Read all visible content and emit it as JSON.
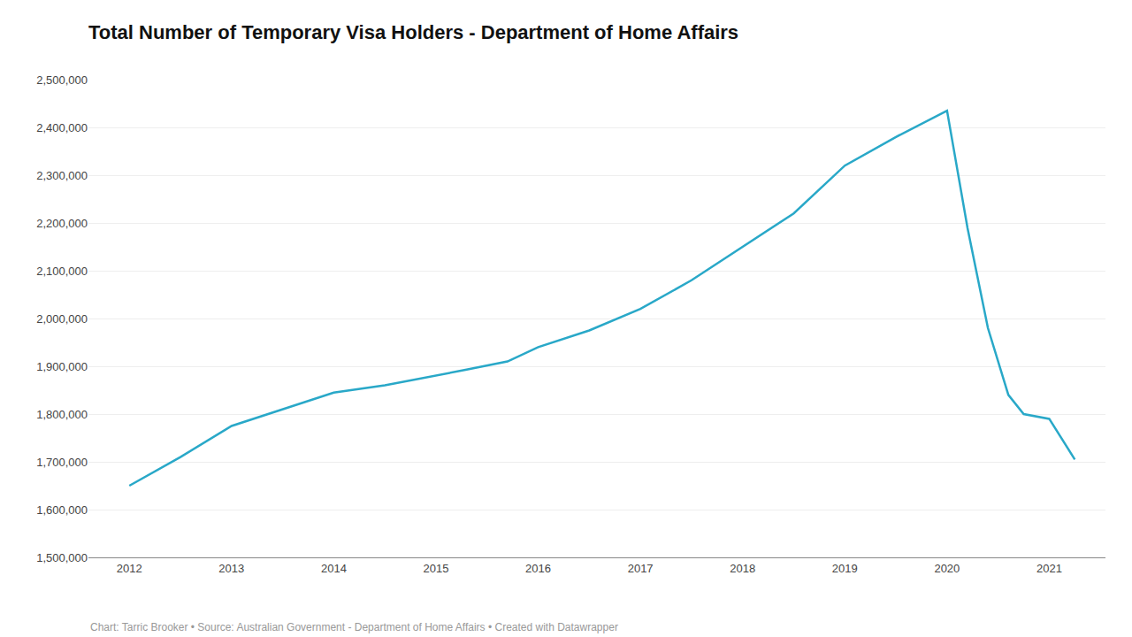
{
  "chart_data": {
    "type": "line",
    "title": "Total Number of Temporary Visa Holders - Department of Home Affairs",
    "caption": "Chart: Tarric Brooker • Source: Australian Government - Department of Home Affairs • Created with Datawrapper",
    "x": [
      2012,
      2012.5,
      2013,
      2013.5,
      2014,
      2014.5,
      2015,
      2015.3,
      2015.7,
      2016,
      2016.5,
      2017,
      2017.5,
      2018,
      2018.5,
      2019,
      2019.5,
      2020,
      2020.2,
      2020.4,
      2020.6,
      2020.75,
      2021,
      2021.25
    ],
    "values": [
      1650000,
      1710000,
      1775000,
      1810000,
      1845000,
      1860000,
      1880000,
      1893000,
      1910000,
      1940000,
      1975000,
      2020000,
      2080000,
      2150000,
      2220000,
      2320000,
      2380000,
      2435000,
      2190000,
      1980000,
      1840000,
      1800000,
      1790000,
      1705000
    ],
    "color": "#29a8c8",
    "xlim": [
      2011.6,
      2021.55
    ],
    "xticks": [
      2012,
      2013,
      2014,
      2015,
      2016,
      2017,
      2018,
      2019,
      2020,
      2021
    ],
    "ylim": [
      1500000,
      2500000
    ],
    "yticks": [
      {
        "value": 1500000,
        "label": "1,500,000"
      },
      {
        "value": 1600000,
        "label": "1,600,000"
      },
      {
        "value": 1700000,
        "label": "1,700,000"
      },
      {
        "value": 1800000,
        "label": "1,800,000"
      },
      {
        "value": 1900000,
        "label": "1,900,000"
      },
      {
        "value": 2000000,
        "label": "2,000,000"
      },
      {
        "value": 2100000,
        "label": "2,100,000"
      },
      {
        "value": 2200000,
        "label": "2,200,000"
      },
      {
        "value": 2300000,
        "label": "2,300,000"
      },
      {
        "value": 2400000,
        "label": "2,400,000"
      },
      {
        "value": 2500000,
        "label": "2,500,000"
      }
    ],
    "grid": "y"
  }
}
